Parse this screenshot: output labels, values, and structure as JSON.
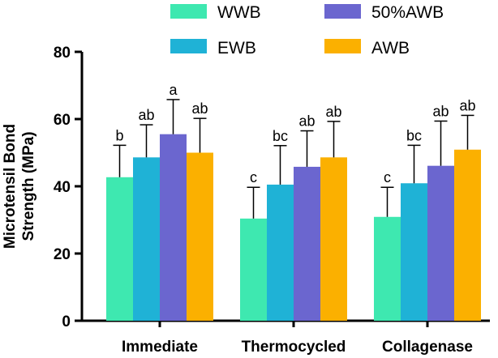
{
  "chart_data": {
    "type": "bar",
    "title": "",
    "xlabel": "",
    "ylabel_lines": [
      "Microtensil Bond",
      "Strength (MPa)"
    ],
    "ylim": [
      0,
      80
    ],
    "yticks": [
      0,
      20,
      40,
      60,
      80
    ],
    "categories": [
      "Immediate",
      "Thermocycled",
      "Collagenase"
    ],
    "legend_position": "top",
    "series": [
      {
        "name": "WWB",
        "color": "#3ee8b0",
        "values": [
          42.7,
          30.4,
          30.9
        ],
        "errors": [
          9.5,
          9.3,
          8.8
        ],
        "letters": [
          "b",
          "c",
          "c"
        ]
      },
      {
        "name": "EWB",
        "color": "#1fb2d6",
        "values": [
          48.6,
          40.5,
          40.9
        ],
        "errors": [
          9.7,
          11.6,
          11.3
        ],
        "letters": [
          "ab",
          "bc",
          "bc"
        ]
      },
      {
        "name": "50%AWB",
        "color": "#6b66cf",
        "values": [
          55.5,
          45.8,
          46.1
        ],
        "errors": [
          10.3,
          10.7,
          13.3
        ],
        "letters": [
          "a",
          "ab",
          "ab"
        ]
      },
      {
        "name": "AWB",
        "color": "#fbb000",
        "values": [
          50.0,
          48.6,
          50.9
        ],
        "errors": [
          10.2,
          10.7,
          10.2
        ],
        "letters": [
          "ab",
          "ab",
          "ab"
        ]
      }
    ]
  }
}
